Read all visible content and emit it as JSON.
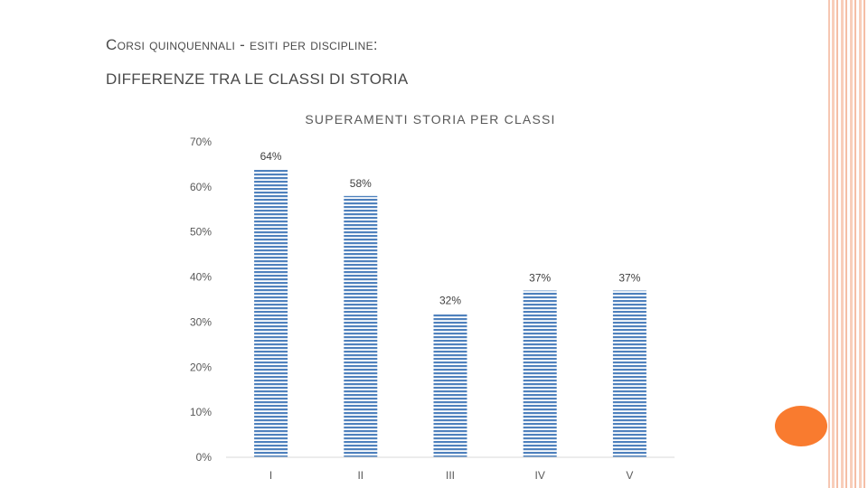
{
  "slide": {
    "title_line1": "Corsi quinquennali - esiti per  discipline:",
    "title_line2": "DIFFERENZE TRA LE CLASSI DI STORIA"
  },
  "colors": {
    "bar_stripe": "#4f81bd",
    "accent": "#f97b2f",
    "border": "#f6c7b2"
  },
  "chart_data": {
    "type": "bar",
    "title": "SUPERAMENTI STORIA PER CLASSI",
    "categories": [
      "I",
      "II",
      "III",
      "IV",
      "V"
    ],
    "values": [
      64,
      58,
      32,
      37,
      37
    ],
    "data_labels": [
      "64%",
      "58%",
      "32%",
      "37%",
      "37%"
    ],
    "ylim": [
      0,
      70
    ],
    "yticks": [
      0,
      10,
      20,
      30,
      40,
      50,
      60,
      70
    ],
    "ytick_labels": [
      "0%",
      "10%",
      "20%",
      "30%",
      "40%",
      "50%",
      "60%",
      "70%"
    ],
    "grid": false,
    "legend": "none"
  }
}
